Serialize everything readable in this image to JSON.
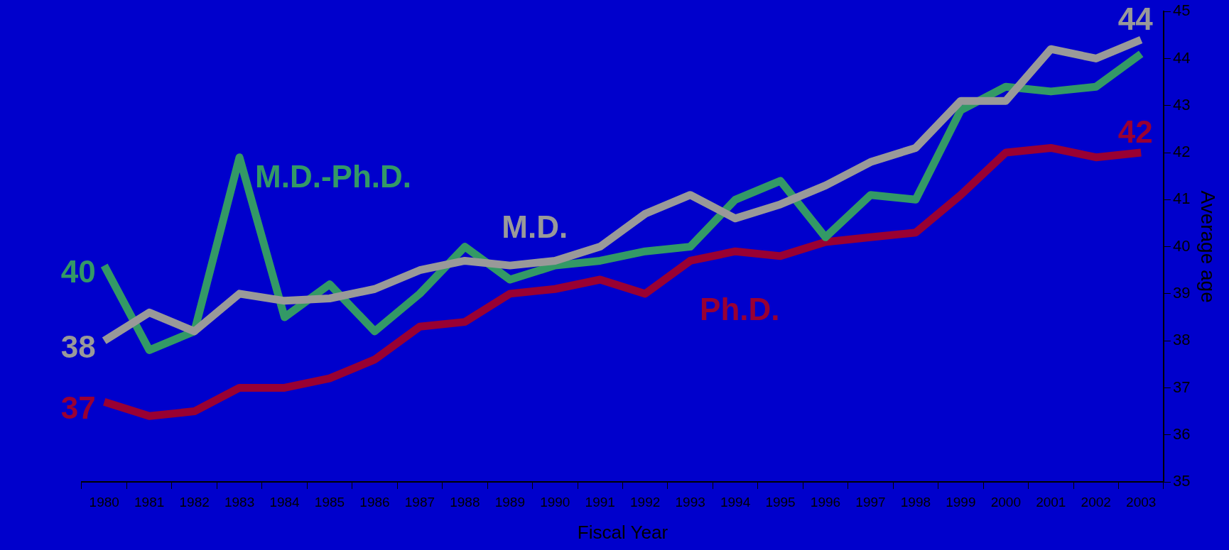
{
  "chart_data": {
    "type": "line",
    "xlabel": "Fiscal Year",
    "ylabel": "Average age",
    "categories": [
      "1980",
      "1981",
      "1982",
      "1983",
      "1984",
      "1985",
      "1986",
      "1987",
      "1988",
      "1989",
      "1990",
      "1991",
      "1992",
      "1993",
      "1994",
      "1995",
      "1996",
      "1997",
      "1998",
      "1999",
      "2000",
      "2001",
      "2002",
      "2003"
    ],
    "ylim": [
      35,
      45
    ],
    "yticks": [
      35,
      36,
      37,
      38,
      39,
      40,
      41,
      42,
      43,
      44,
      45
    ],
    "grid": false,
    "legend": false,
    "marker": "none",
    "line_style": "solid",
    "series": [
      {
        "name": "M.D.",
        "color": "#999999",
        "values": [
          38.0,
          38.6,
          38.2,
          39.0,
          38.85,
          38.9,
          39.1,
          39.5,
          39.7,
          39.6,
          39.7,
          40.0,
          40.7,
          41.1,
          40.6,
          40.9,
          41.3,
          41.8,
          42.1,
          43.1,
          43.1,
          44.2,
          44.0,
          44.4
        ],
        "value_labels": [
          "38",
          null,
          null,
          null,
          null,
          null,
          null,
          null,
          null,
          null,
          null,
          null,
          null,
          null,
          null,
          null,
          null,
          null,
          null,
          null,
          null,
          null,
          null,
          "44"
        ]
      },
      {
        "name": "M.D.-Ph.D.",
        "color": "#339966",
        "values": [
          39.6,
          37.8,
          38.2,
          41.9,
          38.5,
          39.2,
          38.2,
          39.0,
          40.0,
          39.3,
          39.6,
          39.7,
          39.9,
          40.0,
          41.0,
          41.4,
          40.2,
          41.1,
          41.0,
          42.9,
          43.4,
          43.3,
          43.4,
          44.1
        ],
        "value_labels": [
          "40",
          null,
          null,
          null,
          null,
          null,
          null,
          null,
          null,
          null,
          null,
          null,
          null,
          null,
          null,
          null,
          null,
          null,
          null,
          null,
          null,
          null,
          null,
          null
        ]
      },
      {
        "name": "Ph.D.",
        "color": "#990033",
        "values": [
          36.7,
          36.4,
          36.5,
          37.0,
          37.0,
          37.2,
          37.6,
          38.3,
          38.4,
          39.0,
          39.1,
          39.3,
          39.0,
          39.7,
          39.9,
          39.8,
          40.1,
          40.2,
          40.3,
          41.1,
          42.0,
          42.1,
          41.9,
          42.0
        ],
        "value_labels": [
          "37",
          null,
          null,
          null,
          null,
          null,
          null,
          null,
          null,
          null,
          null,
          null,
          null,
          null,
          null,
          null,
          null,
          null,
          null,
          null,
          null,
          null,
          null,
          "42"
        ]
      }
    ]
  }
}
